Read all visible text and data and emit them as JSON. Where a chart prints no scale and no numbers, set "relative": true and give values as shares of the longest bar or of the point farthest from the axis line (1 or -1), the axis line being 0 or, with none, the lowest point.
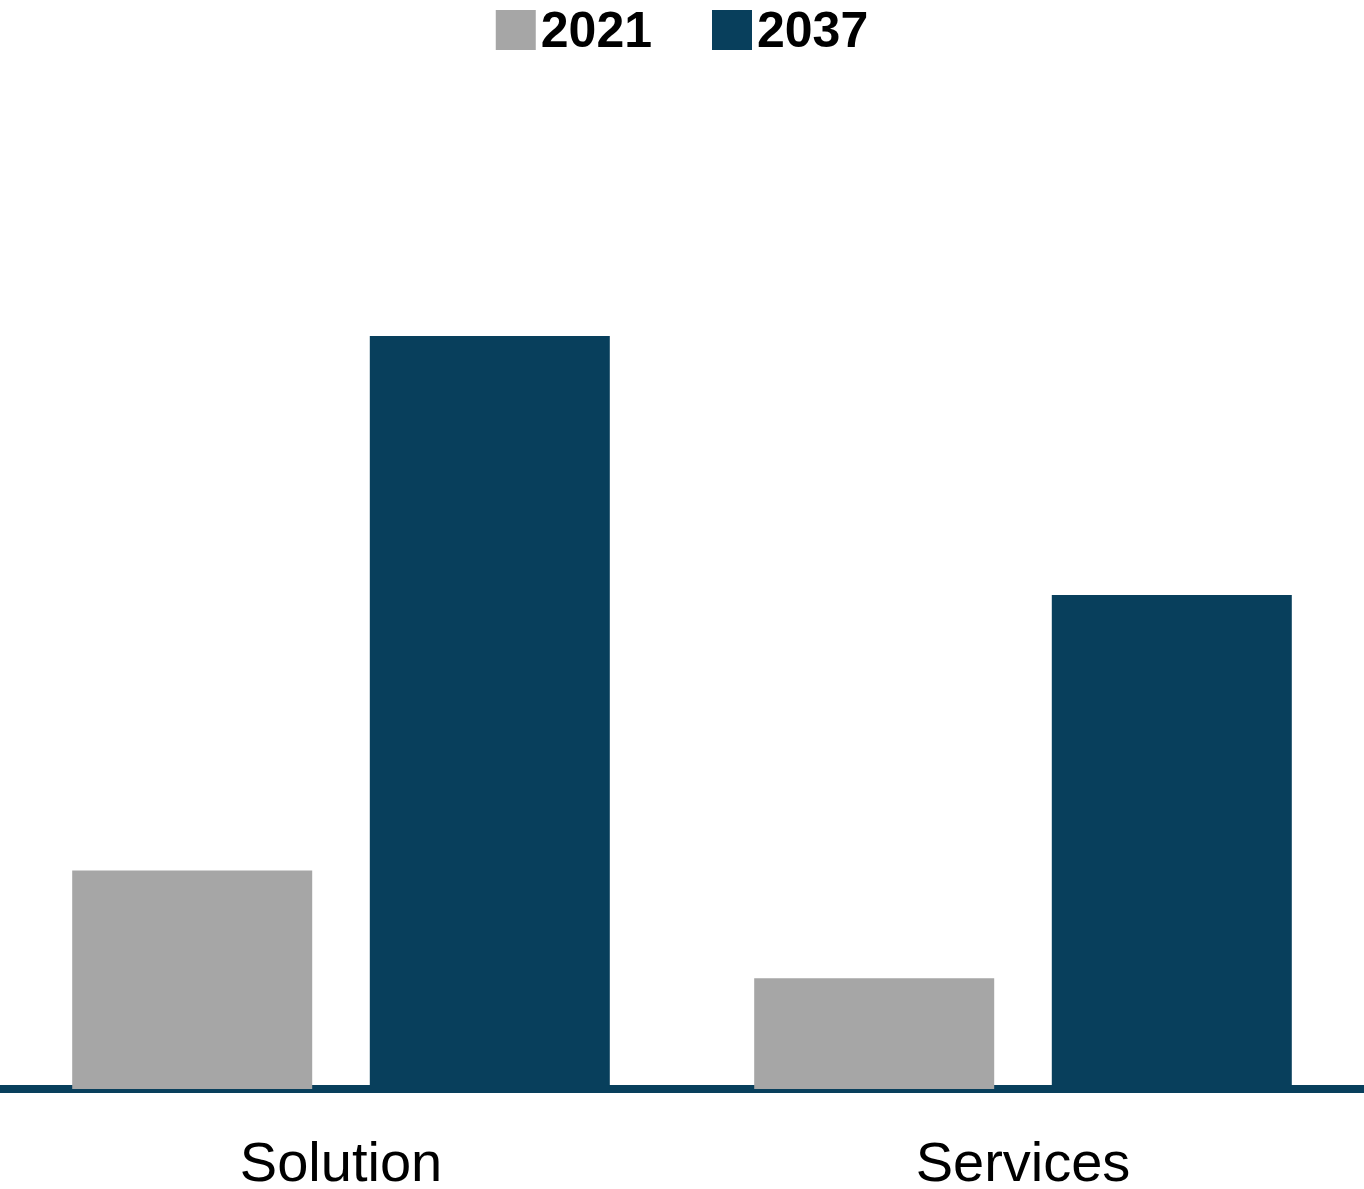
{
  "chart_data": {
    "type": "bar",
    "relative": true,
    "categories": [
      "Solution",
      "Services"
    ],
    "series": [
      {
        "name": "2021",
        "color": "#a6a6a6",
        "values": [
          0.29,
          0.147
        ]
      },
      {
        "name": "2037",
        "color": "#083f5c",
        "values": [
          1,
          0.656
        ]
      }
    ],
    "legend": "top"
  }
}
